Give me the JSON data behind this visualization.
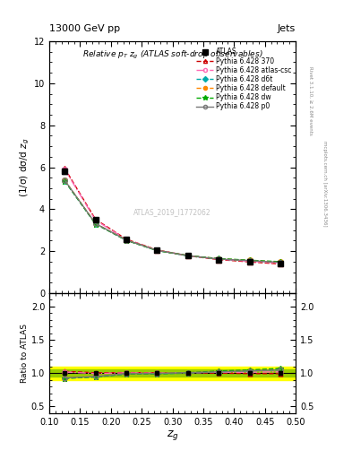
{
  "title_top": "13000 GeV pp",
  "title_right": "Jets",
  "plot_title": "Relative $p_T$ $z_g$ (ATLAS soft-drop observables)",
  "xlabel": "$z_g$",
  "ylabel_main": "(1/σ) dσ/d $z_g$",
  "ylabel_ratio": "Ratio to ATLAS",
  "right_label_top": "Rivet 3.1.10, ≥ 2.6M events",
  "right_label_bottom": "mcplots.cern.ch [arXiv:1306.3436]",
  "watermark": "ATLAS_2019_I1772062",
  "xvals": [
    0.125,
    0.175,
    0.225,
    0.275,
    0.325,
    0.375,
    0.425,
    0.475
  ],
  "atlas_y": [
    5.8,
    3.5,
    2.55,
    2.05,
    1.78,
    1.6,
    1.5,
    1.4
  ],
  "atlas_yerr": [
    0.12,
    0.08,
    0.06,
    0.05,
    0.04,
    0.04,
    0.04,
    0.04
  ],
  "py370_y": [
    5.95,
    3.52,
    2.57,
    2.06,
    1.78,
    1.6,
    1.49,
    1.39
  ],
  "py_atlas_csc_y": [
    5.9,
    3.48,
    2.56,
    2.05,
    1.79,
    1.62,
    1.52,
    1.43
  ],
  "py_d6t_y": [
    5.35,
    3.3,
    2.52,
    2.03,
    1.78,
    1.63,
    1.55,
    1.47
  ],
  "py_default_y": [
    5.38,
    3.32,
    2.53,
    2.04,
    1.79,
    1.64,
    1.56,
    1.48
  ],
  "py_dw_y": [
    5.35,
    3.3,
    2.52,
    2.03,
    1.79,
    1.65,
    1.57,
    1.5
  ],
  "py_p0_y": [
    5.38,
    3.32,
    2.53,
    2.04,
    1.79,
    1.63,
    1.55,
    1.47
  ],
  "ratio_py370": [
    1.026,
    1.006,
    1.008,
    1.005,
    1.0,
    1.0,
    0.993,
    0.993
  ],
  "ratio_atlas_csc": [
    1.017,
    0.994,
    1.004,
    1.0,
    1.006,
    1.013,
    1.013,
    1.021
  ],
  "ratio_d6t": [
    0.922,
    0.943,
    0.988,
    0.99,
    1.0,
    1.019,
    1.033,
    1.05
  ],
  "ratio_default": [
    0.928,
    0.949,
    0.992,
    0.995,
    1.006,
    1.025,
    1.04,
    1.057
  ],
  "ratio_dw": [
    0.922,
    0.943,
    0.988,
    0.99,
    1.006,
    1.031,
    1.047,
    1.071
  ],
  "ratio_p0": [
    0.928,
    0.949,
    0.992,
    0.995,
    1.006,
    1.019,
    1.033,
    1.05
  ],
  "atlas_band_inner": 0.05,
  "atlas_band_outer": 0.1,
  "color_370": "#cc0000",
  "color_atlas_csc": "#ff69b4",
  "color_d6t": "#00aaaa",
  "color_default": "#ff8800",
  "color_dw": "#00aa00",
  "color_p0": "#777777",
  "color_atlas": "#000000",
  "inner_band_color": "#99cc00",
  "outer_band_color": "#ffff00",
  "xlim": [
    0.1,
    0.5
  ],
  "ylim_main": [
    0,
    12
  ],
  "ylim_ratio": [
    0.4,
    2.2
  ],
  "yticks_main": [
    0,
    2,
    4,
    6,
    8,
    10,
    12
  ],
  "yticks_ratio": [
    0.5,
    1.0,
    1.5,
    2.0
  ]
}
